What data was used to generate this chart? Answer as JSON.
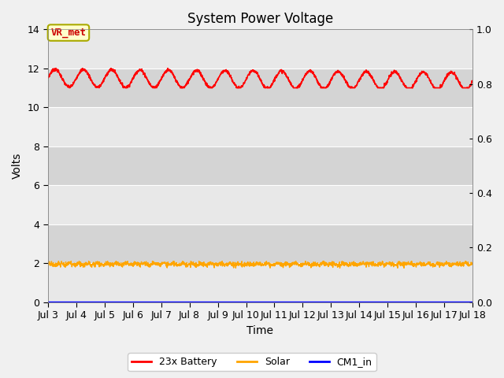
{
  "title": "System Power Voltage",
  "xlabel": "Time",
  "ylabel": "Volts",
  "annotation_text": "VR_met",
  "xlim_days": [
    3,
    18
  ],
  "ylim_left": [
    0,
    14
  ],
  "ylim_right": [
    0.0,
    1.0
  ],
  "xtick_labels": [
    "Jul 3",
    "Jul 4",
    "Jul 5",
    "Jul 6",
    "Jul 7",
    "Jul 8",
    "Jul 9",
    "Jul 10",
    "Jul 11",
    "Jul 12",
    "Jul 13",
    "Jul 14",
    "Jul 15",
    "Jul 16",
    "Jul 17",
    "Jul 18"
  ],
  "xtick_days": [
    3,
    4,
    5,
    6,
    7,
    8,
    9,
    10,
    11,
    12,
    13,
    14,
    15,
    16,
    17,
    18
  ],
  "ytick_left": [
    0,
    2,
    4,
    6,
    8,
    10,
    12,
    14
  ],
  "ytick_right": [
    0.0,
    0.2,
    0.4,
    0.6,
    0.8,
    1.0
  ],
  "battery_color": "#ff0000",
  "solar_color": "#ffa500",
  "cm1_color": "#0000ff",
  "legend_labels": [
    "23x Battery",
    "Solar",
    "CM1_in"
  ],
  "band_colors": [
    "#e8e8e8",
    "#d4d4d4"
  ],
  "grid_color": "#ffffff",
  "title_fontsize": 12,
  "axis_fontsize": 10,
  "tick_fontsize": 9,
  "fig_bg": "#f0f0f0"
}
